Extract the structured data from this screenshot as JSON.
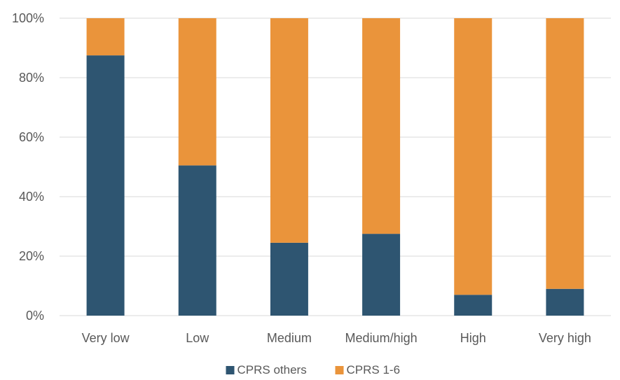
{
  "chart_data": {
    "type": "bar",
    "stacked": true,
    "categories": [
      "Very low",
      "Low",
      "Medium",
      "Medium/high",
      "High",
      "Very high"
    ],
    "series": [
      {
        "name": "CPRS others",
        "color": "#2e5571",
        "values": [
          87.5,
          50.5,
          24.5,
          27.5,
          7,
          9
        ]
      },
      {
        "name": "CPRS 1-6",
        "color": "#ea943b",
        "values": [
          12.5,
          49.5,
          75.5,
          72.5,
          93,
          91
        ]
      }
    ],
    "y_ticks": [
      "0%",
      "20%",
      "40%",
      "60%",
      "80%",
      "100%"
    ],
    "ylim": [
      0,
      100
    ],
    "grid": true,
    "legend": "bottom",
    "title": "",
    "xlabel": "",
    "ylabel": ""
  }
}
